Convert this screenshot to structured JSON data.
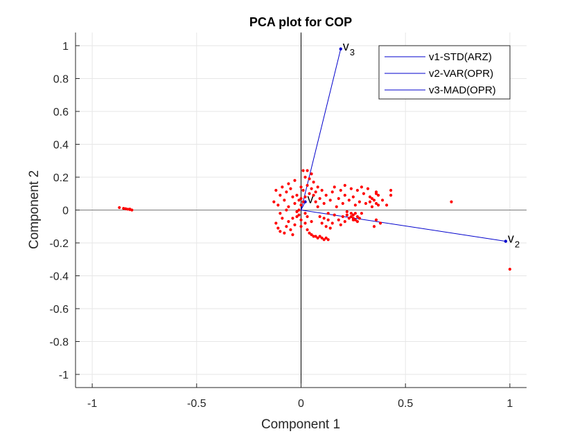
{
  "chart_data": {
    "type": "scatter",
    "title": "PCA plot for COP",
    "xlabel": "Component 1",
    "ylabel": "Component 2",
    "xlim": [
      -1.08,
      1.08
    ],
    "ylim": [
      -1.08,
      1.08
    ],
    "xticks": [
      -1,
      -0.5,
      0,
      0.5,
      1
    ],
    "xtick_labels": [
      "-1",
      "-0.5",
      "0",
      "0.5",
      "1"
    ],
    "yticks": [
      -1,
      -0.8,
      -0.6,
      -0.4,
      -0.2,
      0,
      0.2,
      0.4,
      0.6,
      0.8,
      1
    ],
    "ytick_labels": [
      "-1",
      "-0.8",
      "-0.6",
      "-0.4",
      "-0.2",
      "0",
      "0.2",
      "0.4",
      "0.6",
      "0.8",
      "1"
    ],
    "grid": true,
    "legend_position": "top-right",
    "vector_color": "#0000cc",
    "point_color": "#ff0000",
    "vectors": [
      {
        "name": "v1-STD(ARZ)",
        "label": "v",
        "sub": "",
        "x": 0.02,
        "y": 0.05
      },
      {
        "name": "v2-VAR(OPR)",
        "label": "v",
        "sub": "2",
        "x": 0.98,
        "y": -0.19
      },
      {
        "name": "v3-MAD(OPR)",
        "label": "v",
        "sub": "3",
        "x": 0.19,
        "y": 0.98
      }
    ],
    "points": [
      [
        -0.87,
        0.015
      ],
      [
        -0.85,
        0.01
      ],
      [
        -0.84,
        0.008
      ],
      [
        -0.83,
        0.005
      ],
      [
        -0.82,
        0.003
      ],
      [
        -0.81,
        0.0
      ],
      [
        -0.82,
        0.006
      ],
      [
        -0.12,
        0.12
      ],
      [
        -0.1,
        0.09
      ],
      [
        -0.09,
        0.14
      ],
      [
        -0.08,
        0.06
      ],
      [
        -0.07,
        0.11
      ],
      [
        -0.06,
        0.02
      ],
      [
        -0.05,
        0.13
      ],
      [
        -0.04,
        0.08
      ],
      [
        -0.13,
        0.05
      ],
      [
        -0.11,
        0.03
      ],
      [
        -0.1,
        -0.02
      ],
      [
        -0.09,
        -0.05
      ],
      [
        -0.12,
        -0.08
      ],
      [
        -0.11,
        -0.11
      ],
      [
        -0.1,
        -0.13
      ],
      [
        -0.08,
        -0.14
      ],
      [
        -0.07,
        -0.1
      ],
      [
        -0.06,
        -0.07
      ],
      [
        -0.05,
        -0.12
      ],
      [
        -0.04,
        -0.15
      ],
      [
        -0.03,
        -0.09
      ],
      [
        -0.02,
        -0.04
      ],
      [
        -0.01,
        0.0
      ],
      [
        0.0,
        -0.06
      ],
      [
        -0.03,
        0.04
      ],
      [
        -0.02,
        0.09
      ],
      [
        -0.01,
        0.06
      ],
      [
        0.0,
        0.03
      ],
      [
        0.01,
        0.12
      ],
      [
        0.02,
        0.08
      ],
      [
        0.03,
        0.15
      ],
      [
        0.04,
        0.1
      ],
      [
        0.01,
        0.24
      ],
      [
        0.03,
        0.24
      ],
      [
        0.02,
        0.2
      ],
      [
        0.04,
        0.19
      ],
      [
        0.05,
        0.22
      ],
      [
        0.06,
        0.17
      ],
      [
        0.05,
        0.13
      ],
      [
        0.07,
        0.11
      ],
      [
        0.0,
        0.07
      ],
      [
        0.01,
        0.05
      ],
      [
        -0.02,
        -0.01
      ],
      [
        -0.01,
        -0.03
      ],
      [
        0.02,
        -0.08
      ],
      [
        0.03,
        -0.12
      ],
      [
        0.05,
        -0.15
      ],
      [
        0.07,
        -0.16
      ],
      [
        0.08,
        -0.17
      ],
      [
        0.09,
        -0.16
      ],
      [
        0.1,
        -0.17
      ],
      [
        0.11,
        -0.18
      ],
      [
        0.12,
        -0.17
      ],
      [
        0.13,
        -0.18
      ],
      [
        0.06,
        -0.16
      ],
      [
        0.04,
        -0.14
      ],
      [
        0.08,
        0.02
      ],
      [
        0.09,
        0.07
      ],
      [
        0.1,
        0.12
      ],
      [
        0.11,
        0.04
      ],
      [
        0.12,
        0.09
      ],
      [
        0.13,
        -0.02
      ],
      [
        0.14,
        0.06
      ],
      [
        0.15,
        0.11
      ],
      [
        0.09,
        -0.04
      ],
      [
        0.1,
        -0.08
      ],
      [
        0.11,
        -0.05
      ],
      [
        0.12,
        -0.1
      ],
      [
        0.13,
        -0.06
      ],
      [
        0.14,
        -0.11
      ],
      [
        0.15,
        -0.08
      ],
      [
        0.16,
        -0.03
      ],
      [
        0.17,
        0.02
      ],
      [
        0.18,
        0.07
      ],
      [
        0.19,
        0.12
      ],
      [
        0.2,
        0.04
      ],
      [
        0.21,
        0.09
      ],
      [
        0.22,
        -0.01
      ],
      [
        0.23,
        0.06
      ],
      [
        0.24,
        0.13
      ],
      [
        0.18,
        -0.06
      ],
      [
        0.19,
        -0.09
      ],
      [
        0.2,
        -0.04
      ],
      [
        0.21,
        -0.07
      ],
      [
        0.22,
        -0.03
      ],
      [
        0.23,
        -0.05
      ],
      [
        0.24,
        -0.02
      ],
      [
        0.25,
        -0.06
      ],
      [
        0.25,
        0.08
      ],
      [
        0.26,
        0.03
      ],
      [
        0.27,
        0.12
      ],
      [
        0.28,
        0.05
      ],
      [
        0.29,
        -0.02
      ],
      [
        0.3,
        0.1
      ],
      [
        0.31,
        0.04
      ],
      [
        0.32,
        0.13
      ],
      [
        0.24,
        -0.04
      ],
      [
        0.25,
        -0.05
      ],
      [
        0.26,
        -0.06
      ],
      [
        0.27,
        -0.04
      ],
      [
        0.26,
        -0.02
      ],
      [
        0.27,
        -0.07
      ],
      [
        0.28,
        -0.05
      ],
      [
        0.25,
        -0.03
      ],
      [
        0.33,
        0.08
      ],
      [
        0.34,
        0.02
      ],
      [
        0.35,
        0.06
      ],
      [
        0.36,
        0.1
      ],
      [
        0.37,
        0.03
      ],
      [
        0.36,
        -0.06
      ],
      [
        0.38,
        -0.08
      ],
      [
        0.35,
        -0.1
      ],
      [
        0.33,
        0.05
      ],
      [
        0.34,
        0.07
      ],
      [
        0.36,
        0.04
      ],
      [
        0.37,
        0.09
      ],
      [
        0.39,
        0.06
      ],
      [
        0.41,
        0.03
      ],
      [
        0.43,
        0.12
      ],
      [
        0.43,
        0.09
      ],
      [
        -0.06,
        0.16
      ],
      [
        -0.03,
        0.18
      ],
      [
        0.08,
        0.14
      ],
      [
        0.16,
        0.14
      ],
      [
        0.21,
        0.15
      ],
      [
        0.29,
        0.14
      ],
      [
        0.36,
        0.11
      ],
      [
        0.06,
        0.09
      ],
      [
        0.0,
        -0.1
      ],
      [
        -0.04,
        -0.05
      ],
      [
        0.02,
        -0.02
      ],
      [
        0.05,
        -0.07
      ],
      [
        0.07,
        0.05
      ],
      [
        0.0,
        0.14
      ],
      [
        -0.07,
        0.0
      ],
      [
        0.03,
        -0.04
      ],
      [
        0.72,
        0.05
      ],
      [
        1.0,
        -0.36
      ]
    ]
  }
}
